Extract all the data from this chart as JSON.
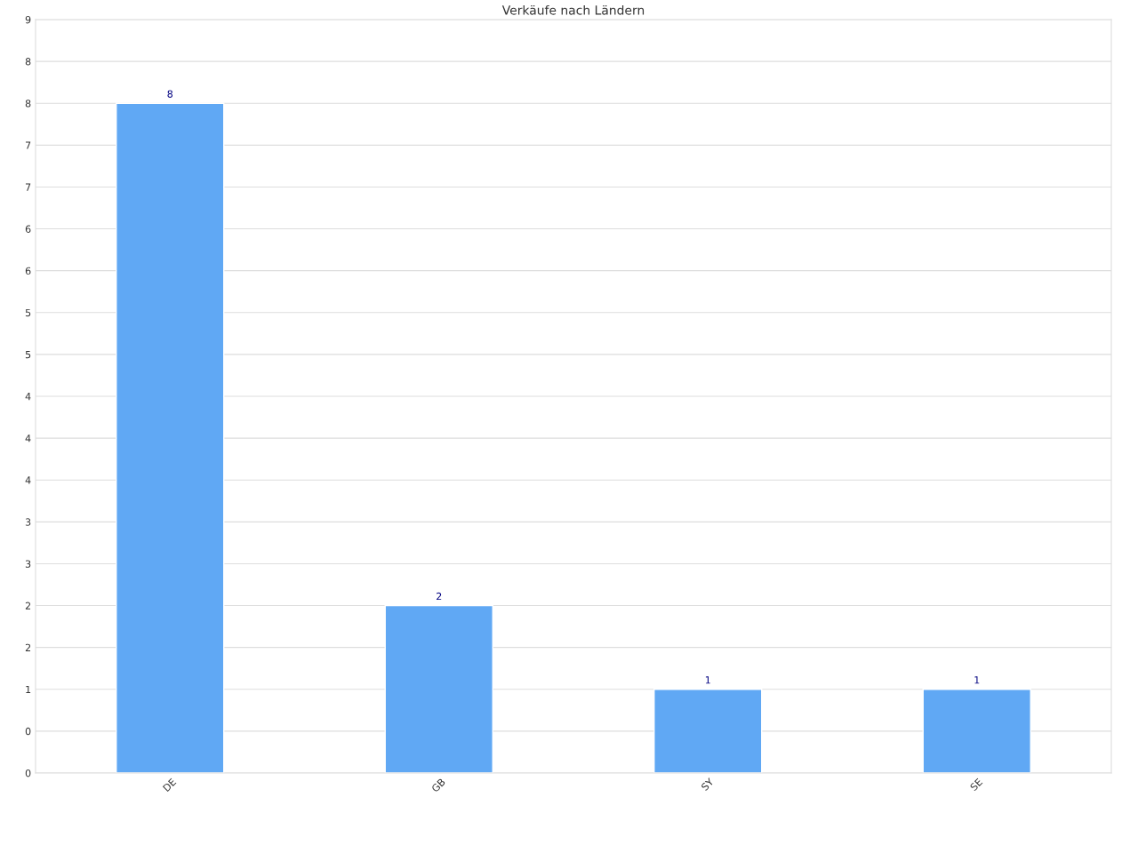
{
  "chart_data": {
    "type": "bar",
    "title": "Verkäufe nach Ländern",
    "categories": [
      "DE",
      "GB",
      "SY",
      "SE"
    ],
    "values": [
      8,
      2,
      1,
      1
    ],
    "color": "#60a8f4",
    "data_labels": true,
    "ylim": [
      0,
      9
    ],
    "yticks": [
      0,
      {
        "value": 0.5,
        "label": "0"
      },
      1,
      {
        "value": 1.5,
        "label": "2"
      },
      2,
      {
        "value": 2.5,
        "label": "3"
      },
      3,
      {
        "value": 3.5,
        "label": "4"
      },
      4,
      {
        "value": 4.5,
        "label": "4"
      },
      5,
      {
        "value": 5.5,
        "label": "5"
      },
      6,
      {
        "value": 6.5,
        "label": "6"
      },
      7,
      {
        "value": 7.5,
        "label": "7"
      },
      8,
      {
        "value": 8.5,
        "label": "8"
      },
      9
    ],
    "grid": "y"
  }
}
